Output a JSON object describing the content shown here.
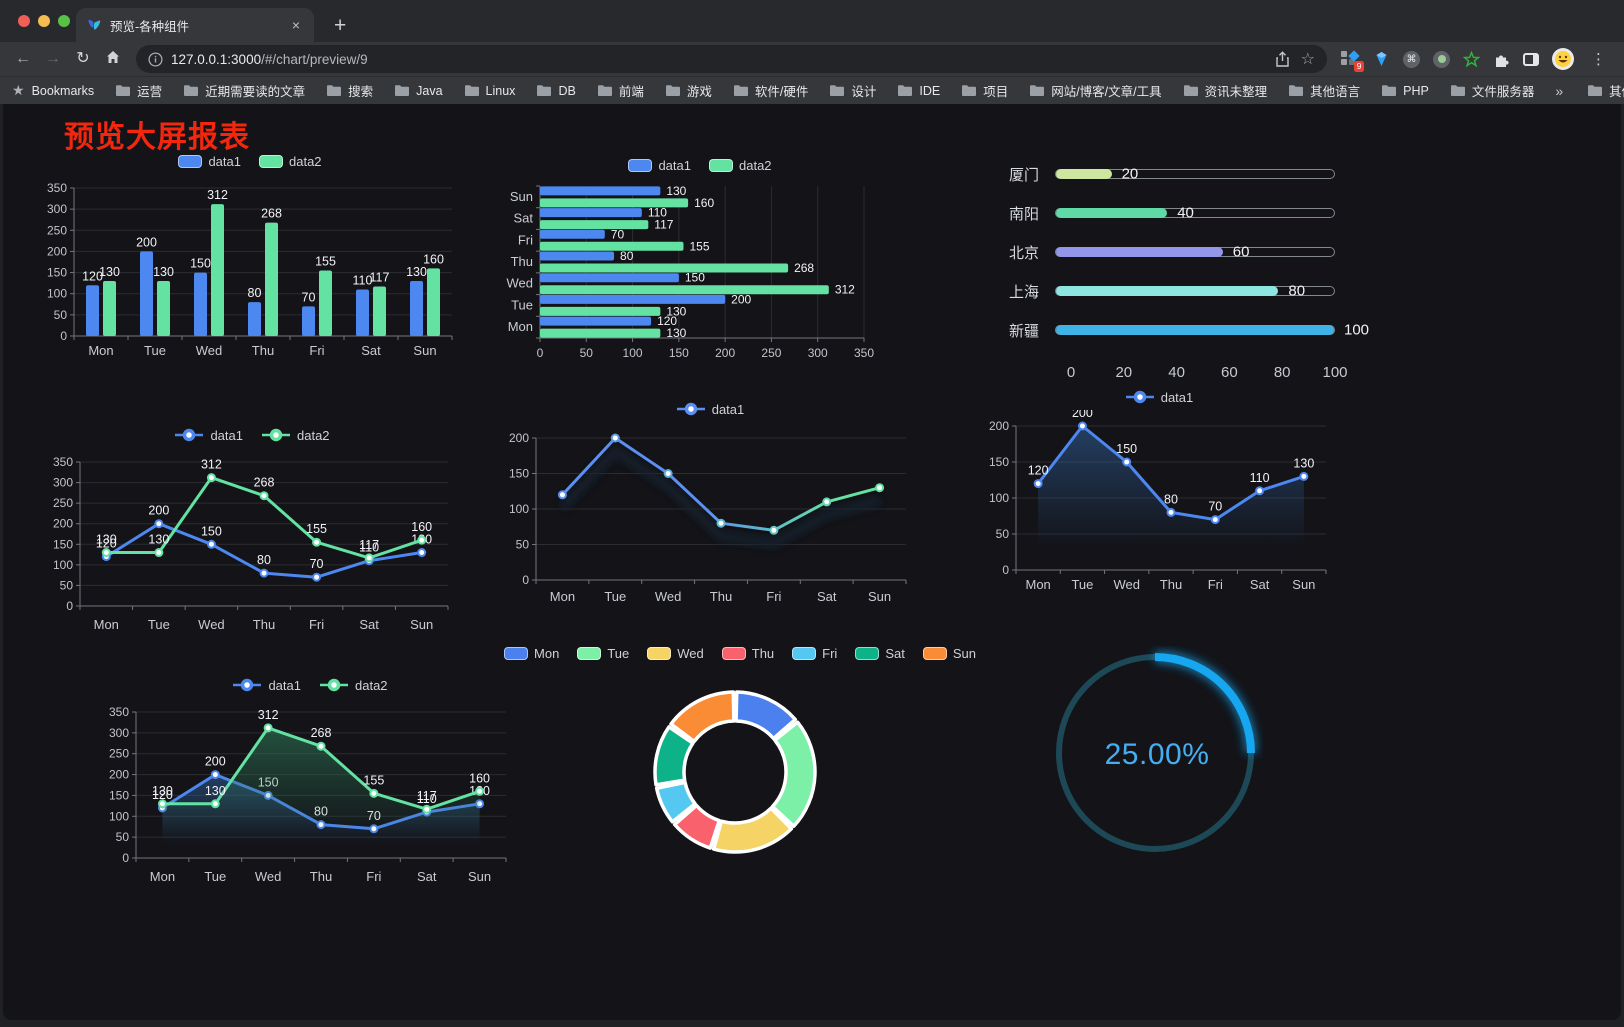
{
  "browser": {
    "tab_title": "预览-各种组件",
    "url_host": "127.0.0.1:3000",
    "url_path": "/#/chart/preview/9",
    "extension_badge": "9",
    "new_tab_label": "+",
    "close_tab_label": "×"
  },
  "bookmarks": {
    "label": "Bookmarks",
    "folders": [
      "运营",
      "近期需要读的文章",
      "搜索",
      "Java",
      "Linux",
      "DB",
      "前端",
      "游戏",
      "软件/硬件",
      "设计",
      "IDE",
      "项目",
      "网站/博客/文章/工具",
      "资讯未整理",
      "其他语言",
      "PHP",
      "文件服务器"
    ],
    "overflow_chevron": "»",
    "other_bookmarks": "其他书签"
  },
  "page": {
    "title": "预览大屏报表"
  },
  "chart_data": [
    {
      "id": "grouped-bar",
      "type": "bar",
      "categories": [
        "Mon",
        "Tue",
        "Wed",
        "Thu",
        "Fri",
        "Sat",
        "Sun"
      ],
      "series": [
        {
          "name": "data1",
          "color": "#4d87f0",
          "values": [
            120,
            200,
            150,
            80,
            70,
            110,
            130
          ]
        },
        {
          "name": "data2",
          "color": "#63e2a2",
          "values": [
            130,
            130,
            312,
            268,
            155,
            117,
            160
          ]
        }
      ],
      "ylim": [
        0,
        350
      ],
      "ytick_step": 50,
      "legend_marker": "rect",
      "show_labels": true
    },
    {
      "id": "horizontal-bar",
      "type": "hbar",
      "categories": [
        "Mon",
        "Tue",
        "Wed",
        "Thu",
        "Fri",
        "Sat",
        "Sun"
      ],
      "category_order_top_to_bottom": [
        "Sun",
        "Sat",
        "Fri",
        "Thu",
        "Wed",
        "Tue",
        "Mon"
      ],
      "series": [
        {
          "name": "data1",
          "color": "#4d87f0",
          "values": [
            120,
            200,
            150,
            80,
            70,
            110,
            130
          ]
        },
        {
          "name": "data2",
          "color": "#63e2a2",
          "values": [
            130,
            130,
            312,
            268,
            155,
            117,
            160
          ]
        }
      ],
      "xlim": [
        0,
        350
      ],
      "xtick_step": 50,
      "legend_marker": "rect",
      "show_labels": true
    },
    {
      "id": "progress-bars",
      "type": "progress",
      "max": 100,
      "axis_ticks": [
        0,
        20,
        40,
        60,
        80,
        100
      ],
      "items": [
        {
          "label": "厦门",
          "value": 20,
          "color": "#cde79f"
        },
        {
          "label": "南阳",
          "value": 40,
          "color": "#5fd9a5"
        },
        {
          "label": "北京",
          "value": 60,
          "color": "#9297ec"
        },
        {
          "label": "上海",
          "value": 80,
          "color": "#8ee6e0"
        },
        {
          "label": "新疆",
          "value": 100,
          "color": "#3fb3e5"
        }
      ]
    },
    {
      "id": "line-two-series",
      "type": "line",
      "categories": [
        "Mon",
        "Tue",
        "Wed",
        "Thu",
        "Fri",
        "Sat",
        "Sun"
      ],
      "series": [
        {
          "name": "data1",
          "color": "#4d87f0",
          "values": [
            120,
            200,
            150,
            80,
            70,
            110,
            130
          ]
        },
        {
          "name": "data2",
          "color": "#63e2a2",
          "values": [
            130,
            130,
            312,
            268,
            155,
            117,
            160
          ]
        }
      ],
      "ylim": [
        0,
        350
      ],
      "ytick_step": 50,
      "show_labels": true,
      "legend_marker": "line"
    },
    {
      "id": "line-gradient",
      "type": "line",
      "categories": [
        "Mon",
        "Tue",
        "Wed",
        "Thu",
        "Fri",
        "Sat",
        "Sun"
      ],
      "series": [
        {
          "name": "data1",
          "gradient": [
            "#5b8ff2",
            "#63e2a2"
          ],
          "values": [
            120,
            200,
            150,
            80,
            70,
            110,
            130
          ]
        }
      ],
      "ylim": [
        0,
        200
      ],
      "ytick_step": 50,
      "show_labels": false,
      "legend_marker": "line",
      "shadow": true
    },
    {
      "id": "line-area-single",
      "type": "line",
      "categories": [
        "Mon",
        "Tue",
        "Wed",
        "Thu",
        "Fri",
        "Sat",
        "Sun"
      ],
      "series": [
        {
          "name": "data1",
          "color": "#4d87f0",
          "area": true,
          "area_color": "#2e5c94",
          "values": [
            120,
            200,
            150,
            80,
            70,
            110,
            130
          ]
        }
      ],
      "ylim": [
        0,
        200
      ],
      "ytick_step": 50,
      "show_labels": true,
      "legend_marker": "line"
    },
    {
      "id": "line-area-two",
      "type": "line",
      "categories": [
        "Mon",
        "Tue",
        "Wed",
        "Thu",
        "Fri",
        "Sat",
        "Sun"
      ],
      "series": [
        {
          "name": "data1",
          "color": "#4d87f0",
          "area": true,
          "area_color": "#2e5c94",
          "values": [
            120,
            200,
            150,
            80,
            70,
            110,
            130
          ]
        },
        {
          "name": "data2",
          "color": "#63e2a2",
          "area": true,
          "area_color": "#2f7a58",
          "values": [
            130,
            130,
            312,
            268,
            155,
            117,
            160
          ]
        }
      ],
      "ylim": [
        0,
        350
      ],
      "ytick_step": 50,
      "show_labels": true,
      "legend_marker": "line"
    },
    {
      "id": "donut",
      "type": "pie",
      "legend_marker": "rect",
      "items": [
        {
          "label": "Mon",
          "value": 120,
          "color": "#4b80ee"
        },
        {
          "label": "Tue",
          "value": 200,
          "color": "#7df0a7"
        },
        {
          "label": "Wed",
          "value": 150,
          "color": "#f6d365"
        },
        {
          "label": "Thu",
          "value": 80,
          "color": "#f9626c"
        },
        {
          "label": "Fri",
          "value": 70,
          "color": "#55c8f2"
        },
        {
          "label": "Sat",
          "value": 110,
          "color": "#0db289"
        },
        {
          "label": "Sun",
          "value": 130,
          "color": "#fa8c35"
        }
      ]
    },
    {
      "id": "gauge",
      "type": "gauge",
      "value": 25,
      "display": "25.00%",
      "color": "#17a7f0",
      "track_color": "#1d4956",
      "text_color": "#45aef2"
    }
  ]
}
